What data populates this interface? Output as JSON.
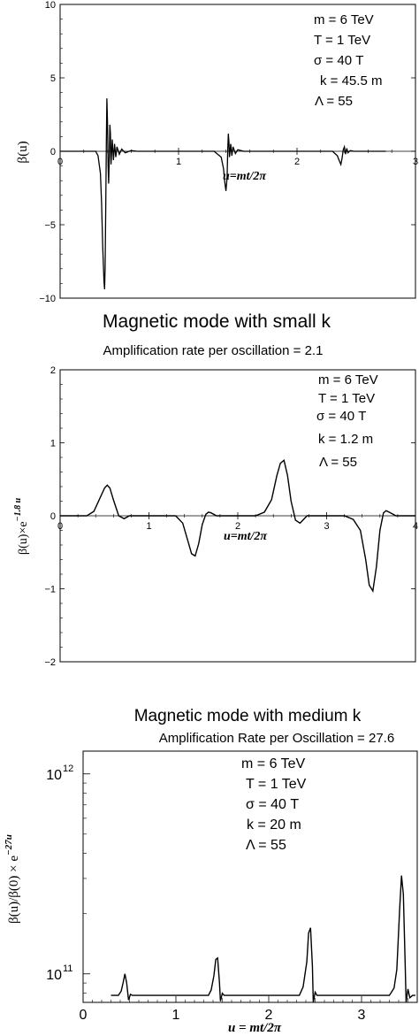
{
  "chart_data": [
    {
      "type": "line",
      "title": "",
      "subtitle": "",
      "xlabel": "u=mt/2π",
      "ylabel": "β(u)",
      "xlim": [
        0,
        3
      ],
      "ylim": [
        -10,
        10
      ],
      "xticks": [
        "0",
        "1",
        "2",
        "3"
      ],
      "yticks": [
        "10",
        "5",
        "0",
        "−5",
        "−10"
      ],
      "grid": false,
      "annotations": [
        "m = 6 TeV",
        "T  = 1 TeV",
        "σ =  40 T",
        "k = 45.5 m",
        "Λ  =  55"
      ],
      "series": [
        {
          "x": [
            0.0,
            0.3,
            0.32,
            0.34,
            0.35,
            0.36,
            0.37,
            0.375,
            0.38,
            0.385,
            0.39,
            0.395,
            0.4,
            0.405,
            0.41,
            0.415,
            0.42,
            0.425,
            0.43,
            0.44,
            0.45,
            0.46,
            0.47,
            0.48,
            0.5,
            0.52,
            0.55,
            0.6,
            0.65,
            0.75,
            1.0,
            1.3,
            1.36,
            1.38,
            1.39,
            1.4,
            1.41,
            1.415,
            1.42,
            1.425,
            1.43,
            1.44,
            1.45,
            1.46,
            1.48,
            1.5,
            1.55,
            1.6,
            1.8,
            2.3,
            2.34,
            2.36,
            2.37,
            2.38,
            2.39,
            2.4,
            2.41,
            2.42,
            2.43,
            2.45,
            2.48,
            2.55,
            2.7,
            2.75
          ],
          "y": [
            0.0,
            0.0,
            -0.3,
            -1.5,
            -3.5,
            -6.5,
            -8.8,
            -9.4,
            -8.0,
            -4.0,
            0.5,
            3.6,
            2.0,
            -1.0,
            -2.2,
            -0.5,
            1.8,
            1.2,
            -0.9,
            0.8,
            -0.6,
            0.5,
            -0.4,
            0.3,
            -0.2,
            0.15,
            -0.1,
            0.05,
            0.0,
            0.0,
            0.0,
            0.0,
            -0.4,
            -1.2,
            -2.1,
            -2.7,
            -1.8,
            0.0,
            1.2,
            0.6,
            -0.4,
            0.5,
            -0.3,
            0.3,
            -0.15,
            0.1,
            0.0,
            0.0,
            0.0,
            0.0,
            -0.3,
            -0.7,
            -0.9,
            -0.5,
            0.1,
            0.3,
            -0.2,
            0.2,
            -0.1,
            0.05,
            0.0,
            0.0,
            0.0,
            0.0
          ]
        }
      ]
    },
    {
      "type": "line",
      "title": "Magnetic mode with small k",
      "subtitle": "Amplification rate per oscillation = 2.1",
      "xlabel": "u=mt/2π",
      "ylabel": "β(u)×e",
      "ylabel_exp": "−1.8 u",
      "xlim": [
        0,
        4
      ],
      "ylim": [
        -2,
        2
      ],
      "xticks": [
        "0",
        "1",
        "2",
        "3",
        "4"
      ],
      "yticks": [
        "2",
        "1",
        "0",
        "−1",
        "−2"
      ],
      "grid": false,
      "annotations": [
        "m = 6 TeV",
        "T  = 1 TeV",
        "σ =  40 T",
        "k  = 1.2 m",
        "Λ  =  55"
      ],
      "series": [
        {
          "x": [
            0.0,
            0.3,
            0.38,
            0.44,
            0.5,
            0.53,
            0.56,
            0.6,
            0.66,
            0.72,
            0.78,
            1.0,
            1.3,
            1.38,
            1.44,
            1.48,
            1.52,
            1.56,
            1.6,
            1.64,
            1.67,
            1.7,
            1.76,
            1.85,
            2.0,
            2.2,
            2.3,
            2.38,
            2.44,
            2.48,
            2.52,
            2.56,
            2.6,
            2.65,
            2.7,
            2.74,
            2.78,
            2.9,
            3.2,
            3.3,
            3.38,
            3.44,
            3.48,
            3.52,
            3.56,
            3.6,
            3.64,
            3.67,
            3.72,
            3.78,
            3.9,
            4.0
          ],
          "y": [
            0.0,
            0.0,
            0.06,
            0.22,
            0.38,
            0.42,
            0.38,
            0.22,
            0.0,
            -0.04,
            0.0,
            0.0,
            0.0,
            -0.1,
            -0.35,
            -0.52,
            -0.55,
            -0.38,
            -0.12,
            0.02,
            0.05,
            0.04,
            0.0,
            0.0,
            0.0,
            0.0,
            0.05,
            0.22,
            0.55,
            0.72,
            0.76,
            0.55,
            0.2,
            -0.06,
            -0.1,
            -0.05,
            0.0,
            0.0,
            0.0,
            -0.05,
            -0.2,
            -0.6,
            -0.95,
            -1.03,
            -0.7,
            -0.2,
            0.04,
            0.07,
            0.04,
            0.0,
            0.0,
            0.0
          ]
        }
      ]
    },
    {
      "type": "line",
      "title": "Magnetic mode with medium k",
      "subtitle": "Amplification Rate per Oscillation = 27.6",
      "xlabel": "u = mt/2π",
      "ylabel": "β(u)/β(0) × e",
      "ylabel_exp": "−27u",
      "xlim": [
        0,
        3.6
      ],
      "ylim": [
        72000000000.0,
        1300000000000.0
      ],
      "yscale": "log",
      "xticks": [
        "0",
        "1",
        "2",
        "3"
      ],
      "yticks_log": [
        "10",
        "10"
      ],
      "yticks_log_exp": [
        "12",
        "11"
      ],
      "grid": false,
      "annotations": [
        "m  =  6  TeV",
        "T  =  1  TeV",
        "σ  = 40 T",
        "k  = 20 m",
        "Λ  =  55"
      ],
      "series": [
        {
          "x": [
            0.3,
            0.38,
            0.41,
            0.43,
            0.45,
            0.47,
            0.49,
            0.51,
            0.53,
            0.6,
            1.0,
            1.35,
            1.38,
            1.41,
            1.43,
            1.45,
            1.47,
            1.48,
            1.5,
            1.52,
            1.6,
            2.0,
            2.33,
            2.37,
            2.41,
            2.43,
            2.45,
            2.47,
            2.48,
            2.5,
            2.52,
            2.6,
            3.0,
            3.3,
            3.35,
            3.38,
            3.41,
            3.43,
            3.45,
            3.47,
            3.48,
            3.5,
            3.52,
            3.55,
            3.58
          ],
          "y": [
            78000000000.0,
            78000000000.0,
            82000000000.0,
            90000000000.0,
            100000000000.0,
            90000000000.0,
            74000000000.0,
            79000000000.0,
            78000000000.0,
            78000000000.0,
            78000000000.0,
            78000000000.0,
            83000000000.0,
            98000000000.0,
            118000000000.0,
            120000000000.0,
            90000000000.0,
            73000000000.0,
            80000000000.0,
            78000000000.0,
            78000000000.0,
            78000000000.0,
            78000000000.0,
            86000000000.0,
            115000000000.0,
            160000000000.0,
            170000000000.0,
            110000000000.0,
            72000000000.0,
            81000000000.0,
            78000000000.0,
            78000000000.0,
            78000000000.0,
            78000000000.0,
            85000000000.0,
            105000000000.0,
            210000000000.0,
            310000000000.0,
            250000000000.0,
            110000000000.0,
            72000000000.0,
            84000000000.0,
            76000000000.0,
            78000000000.0,
            78000000000.0
          ]
        }
      ]
    }
  ]
}
